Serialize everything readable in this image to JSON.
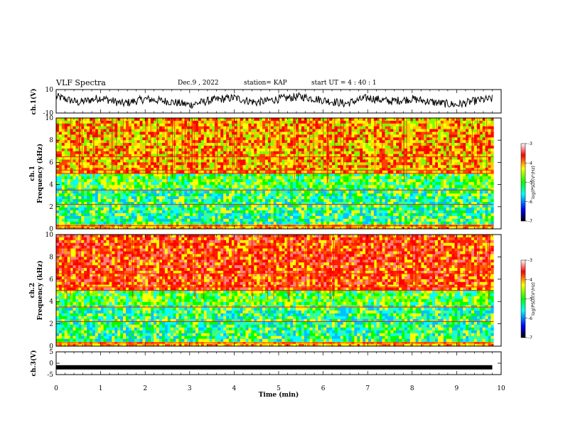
{
  "header": {
    "title": "VLF Spectra",
    "date": "Dec.9 , 2022",
    "station": "station= KAP",
    "start": "start UT = 4 : 40 : 1"
  },
  "colors": {
    "scale": [
      "#000000",
      "#0000ff",
      "#00ffff",
      "#00ff00",
      "#ffff00",
      "#ff0000",
      "#ffffff"
    ]
  },
  "chart_data": [
    {
      "type": "line",
      "panel": "ch1",
      "ylabel": "ch.1(V)",
      "ylim": [
        -10,
        10
      ],
      "yticks": [
        "10",
        "-10"
      ],
      "x": [
        0,
        0.5,
        1,
        1.5,
        2,
        2.5,
        3,
        3.5,
        4,
        4.5,
        5,
        5.5,
        6,
        6.5,
        7,
        7.5,
        8,
        8.5,
        9,
        9.5,
        9.8
      ],
      "values": [
        4,
        -1,
        3,
        -2,
        2,
        0,
        -3,
        1,
        3,
        -1,
        2,
        4,
        1,
        -2,
        3,
        0,
        2,
        -1,
        -3,
        1,
        2
      ]
    },
    {
      "type": "heatmap",
      "panel": "ch1-spectrogram",
      "ylabel": "ch.1 Frequency (kHz)",
      "ylim": [
        0,
        10
      ],
      "yticks": [
        "0",
        "2",
        "4",
        "6",
        "8",
        "10"
      ],
      "xlim": [
        0,
        10
      ],
      "bands": [
        {
          "f_low": 0,
          "f_high": 0.4,
          "level": "orange"
        },
        {
          "f_low": 0.4,
          "f_high": 3.7,
          "level": "green-cyan"
        },
        {
          "f_low": 3.7,
          "f_high": 5.0,
          "level": "green"
        },
        {
          "f_low": 5.0,
          "f_high": 10,
          "level": "yellow-red"
        }
      ],
      "colorbar": {
        "label": "log(PSD)(V²/Hz)",
        "ticks": [
          "-3",
          "-4",
          "-5",
          "-6",
          "-7"
        ],
        "range": [
          -7,
          -3
        ]
      }
    },
    {
      "type": "heatmap",
      "panel": "ch2-spectrogram",
      "ylabel": "ch.2 Frequency (kHz)",
      "ylim": [
        0,
        10
      ],
      "yticks": [
        "0",
        "2",
        "4",
        "6",
        "8",
        "10"
      ],
      "xlim": [
        0,
        10
      ],
      "bands": [
        {
          "f_low": 0,
          "f_high": 0.4,
          "level": "orange"
        },
        {
          "f_low": 0.4,
          "f_high": 3.7,
          "level": "green-cyan"
        },
        {
          "f_low": 3.7,
          "f_high": 5.0,
          "level": "green"
        },
        {
          "f_low": 5.0,
          "f_high": 10,
          "level": "red"
        }
      ],
      "colorbar": {
        "label": "log(PSD)(V²/Hz)",
        "ticks": [
          "-3",
          "-4",
          "-5",
          "-6",
          "-7"
        ],
        "range": [
          -7,
          -3
        ]
      }
    },
    {
      "type": "line",
      "panel": "ch3",
      "ylabel": "ch.3(V)",
      "ylim": [
        -5,
        5
      ],
      "yticks": [
        "5",
        "0",
        "-5"
      ],
      "x": [
        0,
        9.8
      ],
      "values": [
        -1.8,
        -1.8
      ]
    }
  ],
  "xaxis": {
    "label": "Time (min)",
    "ticks": [
      "0",
      "1",
      "2",
      "3",
      "4",
      "5",
      "6",
      "7",
      "8",
      "9",
      "10"
    ],
    "range": [
      0,
      10
    ]
  }
}
